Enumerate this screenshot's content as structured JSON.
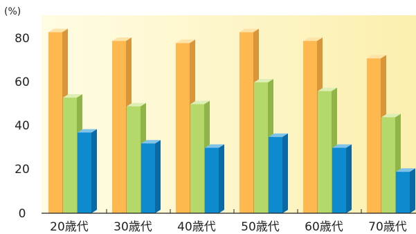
{
  "chart_data": {
    "type": "bar",
    "style": "3d-grouped",
    "categories": [
      "20歳代",
      "30歳代",
      "40歳代",
      "50歳代",
      "60歳代",
      "70歳代"
    ],
    "series": [
      {
        "values": [
          83,
          79,
          78,
          83,
          79,
          71
        ]
      },
      {
        "values": [
          53,
          49,
          50,
          60,
          56,
          44
        ]
      },
      {
        "values": [
          37,
          32,
          30,
          35,
          30,
          19
        ]
      }
    ],
    "yunit": "(%)",
    "yticks": [
      "0",
      "20",
      "40",
      "60",
      "80"
    ],
    "ylim": [
      0,
      90
    ],
    "grid": false,
    "legend": "none",
    "colors": {
      "series_front": [
        "#FDB84F",
        "#B4D96A",
        "#0E8ACE"
      ],
      "series_side": [
        "#D9953A",
        "#8FB548",
        "#0B6AA3"
      ],
      "series_top": [
        "#FDE3A8",
        "#DDEFB4",
        "#7FC3EA"
      ],
      "background_left": "#FFFCE4",
      "background_right": "#FBEFAE",
      "axis": "#222222"
    }
  }
}
